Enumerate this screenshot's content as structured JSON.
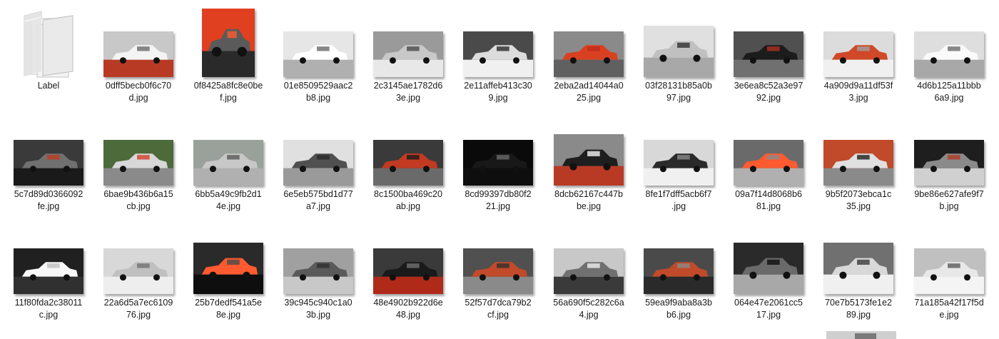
{
  "folder": {
    "name": "Label",
    "icon": "folder-icon"
  },
  "files": [
    {
      "line1": "0dff5becb0f6c70",
      "line2": "d.jpg",
      "colors": [
        "#c8c8c8",
        "#f4f4f4",
        "#6a6a6a",
        "#b93a24"
      ]
    },
    {
      "line1": "0f8425a8fc8e0be",
      "line2": "f.jpg",
      "colors": [
        "#e04020",
        "#5a5a5a",
        "#ff5a30",
        "#2a2a2a"
      ],
      "tall": true
    },
    {
      "line1": "01e8509529aac2",
      "line2": "b8.jpg",
      "colors": [
        "#e6e6e6",
        "#ffffff",
        "#6a6a6a",
        "#b0b0b0"
      ]
    },
    {
      "line1": "2c3145ae1782d6",
      "line2": "3e.jpg",
      "colors": [
        "#9a9a9a",
        "#c8c8c8",
        "#4a4a4a",
        "#e8e8e8"
      ]
    },
    {
      "line1": "2e11affeb413c30",
      "line2": "9.jpg",
      "colors": [
        "#4a4a4a",
        "#dcdcdc",
        "#2a2a2a",
        "#f0f0f0"
      ]
    },
    {
      "line1": "2eba2ad14044a0",
      "line2": "25.jpg",
      "colors": [
        "#8a8a8a",
        "#d84020",
        "#c02a1a",
        "#606060"
      ]
    },
    {
      "line1": "03f28131b85a0b",
      "line2": "97.jpg",
      "colors": [
        "#e0e0e0",
        "#c0c0c0",
        "#303030",
        "#a8a8a8"
      ],
      "sq": true
    },
    {
      "line1": "3e6ea8c52a3e97",
      "line2": "92.jpg",
      "colors": [
        "#505050",
        "#1c1c1c",
        "#b03020",
        "#707070"
      ]
    },
    {
      "line1": "4a909d9a11df53f",
      "line2": "3.jpg",
      "colors": [
        "#dcdcdc",
        "#d04828",
        "#a0a0a0",
        "#f0f0f0"
      ]
    },
    {
      "line1": "4d6b125a11bbb",
      "line2": "6a9.jpg",
      "colors": [
        "#dedede",
        "#fafafa",
        "#6a6a6a",
        "#a8a8a8"
      ]
    },
    {
      "line1": "5c7d89d0366092",
      "line2": "fe.jpg",
      "colors": [
        "#3a3a3a",
        "#707070",
        "#c03a22",
        "#1a1a1a"
      ]
    },
    {
      "line1": "6bae9b436b6a15",
      "line2": "cb.jpg",
      "colors": [
        "#4c6a3a",
        "#d8d8d8",
        "#d04028",
        "#8a8a8a"
      ]
    },
    {
      "line1": "6bb5a49c9fb2d1",
      "line2": "4e.jpg",
      "colors": [
        "#9aa09a",
        "#c8c8c8",
        "#5a5a5a",
        "#b0b0b0"
      ]
    },
    {
      "line1": "6e5eb575bd1d77",
      "line2": "a7.jpg",
      "colors": [
        "#e0e0e0",
        "#505050",
        "#2a2a2a",
        "#9a9a9a"
      ]
    },
    {
      "line1": "8c1500ba469c20",
      "line2": "ab.jpg",
      "colors": [
        "#3a3a3a",
        "#c23a22",
        "#1a1a1a",
        "#6a6a6a"
      ]
    },
    {
      "line1": "8cd99397db80f2",
      "line2": "21.jpg",
      "colors": [
        "#0a0a0a",
        "#181818",
        "#6a6a6a",
        "#0e0e0e"
      ]
    },
    {
      "line1": "8dcb62167c447b",
      "line2": "be.jpg",
      "colors": [
        "#8a8a8a",
        "#1e1e1e",
        "#f2f2f2",
        "#b93a24"
      ],
      "sq": true
    },
    {
      "line1": "8fe1f7dff5acb6f7",
      "line2": ".jpg",
      "colors": [
        "#d8d8d8",
        "#2a2a2a",
        "#8a8a8a",
        "#f0f0f0"
      ]
    },
    {
      "line1": "09a7f14d8068b6",
      "line2": "81.jpg",
      "colors": [
        "#6a6a6a",
        "#ff5a30",
        "#8a8a8a",
        "#b0b0b0"
      ]
    },
    {
      "line1": "9b5f2073ebca1c",
      "line2": "35.jpg",
      "colors": [
        "#c04a2a",
        "#e0e0e0",
        "#1e1e1e",
        "#8a8a8a"
      ]
    },
    {
      "line1": "9be86e627afe9f7",
      "line2": "b.jpg",
      "colors": [
        "#1e1e1e",
        "#8a8a8a",
        "#b03a24",
        "#d0d0d0"
      ]
    },
    {
      "line1": "11f80fda2c38011",
      "line2": "c.jpg",
      "colors": [
        "#202020",
        "#f8f8f8",
        "#c0c0c0",
        "#303030"
      ]
    },
    {
      "line1": "22a6d5a7ec6109",
      "line2": "76.jpg",
      "colors": [
        "#d8d8d8",
        "#c0c0c0",
        "#707070",
        "#eeeeee"
      ]
    },
    {
      "line1": "25b7dedf541a5e",
      "line2": "8e.jpg",
      "colors": [
        "#2a2a2a",
        "#ff5a30",
        "#4a4a4a",
        "#0e0e0e"
      ],
      "sq": true
    },
    {
      "line1": "39c945c940c1a0",
      "line2": "3b.jpg",
      "colors": [
        "#a0a0a0",
        "#5a5a5a",
        "#303030",
        "#c8c8c8"
      ]
    },
    {
      "line1": "48e4902b922d6e",
      "line2": "48.jpg",
      "colors": [
        "#3a3a3a",
        "#1a1a1a",
        "#707070",
        "#b02a1a"
      ]
    },
    {
      "line1": "52f57d7dca79b2",
      "line2": "cf.jpg",
      "colors": [
        "#505050",
        "#c04a2a",
        "#303030",
        "#8a8a8a"
      ]
    },
    {
      "line1": "56a690f5c282c6a",
      "line2": "4.jpg",
      "colors": [
        "#c8c8c8",
        "#707070",
        "#f0f0f0",
        "#3a3a3a"
      ]
    },
    {
      "line1": "59ea9f9aba8a3b",
      "line2": "b6.jpg",
      "colors": [
        "#4a4a4a",
        "#c04a2a",
        "#8a8a8a",
        "#2a2a2a"
      ]
    },
    {
      "line1": "064e47e2061cc5",
      "line2": "17.jpg",
      "colors": [
        "#2a2a2a",
        "#6a6a6a",
        "#0e0e0e",
        "#a8a8a8"
      ],
      "sq": true
    },
    {
      "line1": "70e7b5173fe1e2",
      "line2": "89.jpg",
      "colors": [
        "#707070",
        "#d8d8d8",
        "#3a3a3a",
        "#f0f0f0"
      ],
      "sq": true
    },
    {
      "line1": "71a185a42f17f5d",
      "line2": "e.jpg",
      "colors": [
        "#c0c0c0",
        "#e8e8e8",
        "#5a5a5a",
        "#f4f4f4"
      ]
    }
  ]
}
